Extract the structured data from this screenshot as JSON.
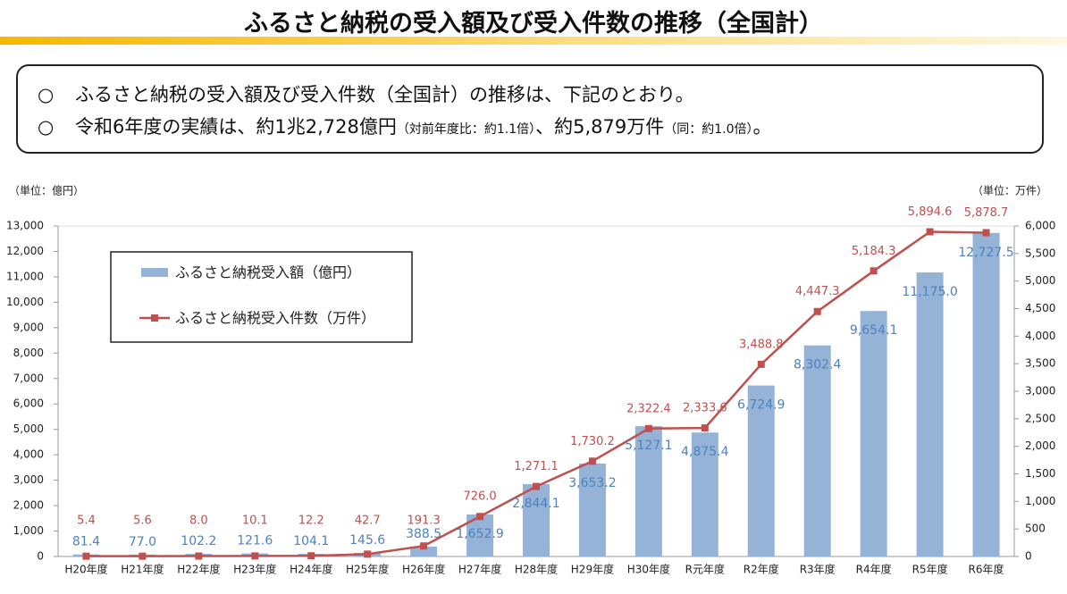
{
  "header": {
    "title": "ふるさと納税の受入額及び受入件数の推移（全国計）"
  },
  "summary": {
    "lines": [
      {
        "bullet": "○",
        "parts": [
          "ふるさと納税の受入額及び受入件数（全国計）の推移は、下記のとおり。"
        ]
      },
      {
        "bullet": "○",
        "parts": [
          "令和6年度の実績は、約1兆2,728億円",
          "（対前年度比：約1.1倍）",
          "、約5,879万件",
          "（同：約1.0倍）",
          "。"
        ]
      }
    ]
  },
  "chart_data": {
    "type": "bar-line",
    "y_unit": "（単位：億円）",
    "y2_unit": "（単位：万件）",
    "categories": [
      "H20年度",
      "H21年度",
      "H22年度",
      "H23年度",
      "H24年度",
      "H25年度",
      "H26年度",
      "H27年度",
      "H28年度",
      "H29年度",
      "H30年度",
      "R元年度",
      "R2年度",
      "R3年度",
      "R4年度",
      "R5年度",
      "R6年度"
    ],
    "series": [
      {
        "name": "ふるさと納税受入額（億円）",
        "color": "#95b3d7",
        "label_color": "#4f81bd",
        "values": [
          81.4,
          77.0,
          102.2,
          121.6,
          104.1,
          145.6,
          388.5,
          1652.9,
          2844.1,
          3653.2,
          5127.1,
          4875.4,
          6724.9,
          8302.4,
          9654.1,
          11175.0,
          12727.5
        ],
        "value_labels": [
          "81.4",
          "77.0",
          "102.2",
          "121.6",
          "104.1",
          "145.6",
          "388.5",
          "1,652.9",
          "2,844.1",
          "3,653.2",
          "5,127.1",
          "4,875.4",
          "6,724.9",
          "8,302.4",
          "9,654.1",
          "11,175.0",
          "12,727.5"
        ]
      },
      {
        "name": "ふるさと納税受入件数（万件）",
        "color": "#c0504d",
        "axis": "y2",
        "values": [
          5.4,
          5.6,
          8.0,
          10.1,
          12.2,
          42.7,
          191.3,
          726.0,
          1271.1,
          1730.2,
          2322.4,
          2333.6,
          3488.8,
          4447.3,
          5184.3,
          5894.6,
          5878.7
        ],
        "value_labels": [
          "5.4",
          "5.6",
          "8.0",
          "10.1",
          "12.2",
          "42.7",
          "191.3",
          "726.0",
          "1,271.1",
          "1,730.2",
          "2,322.4",
          "2,333.6",
          "3,488.8",
          "4,447.3",
          "5,184.3",
          "5,894.6",
          "5,878.7"
        ]
      }
    ],
    "ylim": [
      0,
      13000
    ],
    "yticks": [
      0,
      {
        "value": 1000,
        "label": "1,000"
      },
      {
        "value": 2000,
        "label": "2,000"
      },
      {
        "value": 3000,
        "label": "3,000"
      },
      {
        "value": 4000,
        "label": "4,000"
      },
      {
        "value": 5000,
        "label": "5,000"
      },
      {
        "value": 6000,
        "label": "6,000"
      },
      {
        "value": 7000,
        "label": "7,000"
      },
      {
        "value": 8000,
        "label": "8,000"
      },
      {
        "value": 9000,
        "label": "9,000"
      },
      {
        "value": 10000,
        "label": "10,000"
      },
      {
        "value": 11000,
        "label": "11,000"
      },
      {
        "value": 12000,
        "label": "12,000"
      },
      {
        "value": 13000,
        "label": "13,000"
      }
    ],
    "y2lim": [
      0,
      6000
    ],
    "y2ticks": [
      0,
      500,
      {
        "value": 1000,
        "label": "1,000"
      },
      {
        "value": 1500,
        "label": "1,500"
      },
      {
        "value": 2000,
        "label": "2,000"
      },
      {
        "value": 2500,
        "label": "2,500"
      },
      {
        "value": 3000,
        "label": "3,000"
      },
      {
        "value": 3500,
        "label": "3,500"
      },
      {
        "value": 4000,
        "label": "4,000"
      },
      {
        "value": 4500,
        "label": "4,500"
      },
      {
        "value": 5000,
        "label": "5,000"
      },
      {
        "value": 5500,
        "label": "5,500"
      },
      {
        "value": 6000,
        "label": "6,000"
      }
    ],
    "grid": false
  }
}
